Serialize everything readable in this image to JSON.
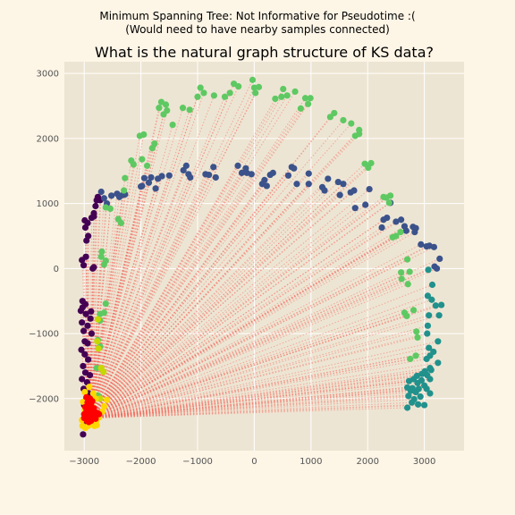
{
  "suptitle": {
    "line1": "Minimum Spanning Tree: Not Informative for Pseudotime :(",
    "line2": "(Would need to have nearby samples connected)"
  },
  "colors": {
    "figure_bg": "#fdf5e6",
    "axes_bg": "#ede5d3",
    "grid": "#ffffff",
    "edge": "#f4665c",
    "colormap": "viridis",
    "start_region": [
      "#ff0000",
      "#ffd700"
    ]
  },
  "chart_data": {
    "type": "scatter",
    "title": "What is the natural graph structure of KS data?",
    "xlabel": "",
    "ylabel": "",
    "xlim": [
      -3350,
      3700
    ],
    "ylim": [
      -2800,
      3180
    ],
    "xticks": [
      -3000,
      -2000,
      -1000,
      0,
      1000,
      2000,
      3000
    ],
    "yticks": [
      -2000,
      -1000,
      0,
      1000,
      2000,
      3000
    ],
    "grid": true,
    "hub": [
      -2900,
      -2300
    ],
    "edges_description": "dotted red lines connect the dense cluster near (-2900,-2300) to samples along the arc",
    "series": [
      {
        "color": "#440154",
        "points": [
          [
            -3020,
            -2550
          ],
          [
            -2980,
            -2400
          ],
          [
            -3000,
            -2100
          ],
          [
            -2960,
            -2000
          ],
          [
            -2920,
            -1920
          ],
          [
            -3010,
            -1850
          ],
          [
            -2950,
            -1750
          ],
          [
            -3040,
            -1700
          ],
          [
            -2900,
            -1640
          ],
          [
            -2980,
            -1600
          ],
          [
            -3020,
            -1500
          ],
          [
            -2930,
            -1400
          ],
          [
            -2990,
            -1320
          ],
          [
            -3050,
            -1250
          ],
          [
            -2940,
            -1150
          ],
          [
            -2990,
            -1120
          ],
          [
            -2870,
            -1000
          ],
          [
            -3010,
            -960
          ],
          [
            -2940,
            -880
          ],
          [
            -3040,
            -830
          ],
          [
            -2890,
            -770
          ],
          [
            -2970,
            -700
          ],
          [
            -3060,
            -650
          ],
          [
            -2880,
            -660
          ],
          [
            -3030,
            -600
          ],
          [
            -2980,
            -550
          ],
          [
            -3030,
            -500
          ],
          [
            -2850,
            0
          ],
          [
            -2830,
            20
          ],
          [
            -3010,
            50
          ],
          [
            -3040,
            130
          ],
          [
            -2970,
            180
          ],
          [
            -2960,
            430
          ],
          [
            -2930,
            500
          ],
          [
            -2980,
            630
          ],
          [
            -2940,
            700
          ],
          [
            -2990,
            740
          ],
          [
            -2870,
            780
          ],
          [
            -2830,
            800
          ],
          [
            -2830,
            850
          ],
          [
            -2800,
            960
          ],
          [
            -2780,
            1050
          ],
          [
            -2760,
            1100
          ],
          [
            -2720,
            1050
          ]
        ]
      },
      {
        "color": "#3b528b",
        "points": [
          [
            -2700,
            1180
          ],
          [
            -2650,
            1080
          ],
          [
            -2600,
            1000
          ],
          [
            -2520,
            1120
          ],
          [
            -2420,
            1150
          ],
          [
            -2380,
            1100
          ],
          [
            -2320,
            1130
          ],
          [
            -2280,
            1140
          ],
          [
            -2000,
            1260
          ],
          [
            -1980,
            1270
          ],
          [
            -1940,
            1390
          ],
          [
            -1860,
            1320
          ],
          [
            -1820,
            1400
          ],
          [
            -1740,
            1230
          ],
          [
            -1700,
            1380
          ],
          [
            -1630,
            1420
          ],
          [
            -1500,
            1430
          ],
          [
            -1250,
            1510
          ],
          [
            -1200,
            1580
          ],
          [
            -1160,
            1450
          ],
          [
            -1130,
            1400
          ],
          [
            -860,
            1450
          ],
          [
            -800,
            1440
          ],
          [
            -720,
            1560
          ],
          [
            -680,
            1400
          ],
          [
            -290,
            1580
          ],
          [
            -220,
            1470
          ],
          [
            -150,
            1540
          ],
          [
            -130,
            1470
          ],
          [
            -50,
            1450
          ],
          [
            140,
            1300
          ],
          [
            180,
            1360
          ],
          [
            220,
            1270
          ],
          [
            280,
            1440
          ],
          [
            330,
            1470
          ],
          [
            600,
            1430
          ],
          [
            660,
            1560
          ],
          [
            700,
            1540
          ],
          [
            750,
            1300
          ],
          [
            960,
            1460
          ],
          [
            960,
            1300
          ],
          [
            1200,
            1250
          ],
          [
            1240,
            1200
          ],
          [
            1300,
            1380
          ],
          [
            1480,
            1330
          ],
          [
            1510,
            1130
          ],
          [
            1570,
            1300
          ],
          [
            1700,
            1170
          ],
          [
            1760,
            1200
          ],
          [
            1780,
            930
          ],
          [
            1960,
            980
          ],
          [
            2030,
            1220
          ],
          [
            2250,
            630
          ],
          [
            2280,
            750
          ],
          [
            2340,
            780
          ],
          [
            2400,
            1010
          ],
          [
            2500,
            720
          ],
          [
            2590,
            750
          ],
          [
            2650,
            650
          ],
          [
            2680,
            580
          ],
          [
            2800,
            640
          ],
          [
            2850,
            620
          ],
          [
            2830,
            560
          ],
          [
            2940,
            370
          ],
          [
            3040,
            340
          ],
          [
            3090,
            350
          ],
          [
            3170,
            330
          ],
          [
            3270,
            150
          ],
          [
            3180,
            30
          ],
          [
            3220,
            0
          ]
        ]
      },
      {
        "color": "#21918c",
        "points": [
          [
            3070,
            -20
          ],
          [
            3140,
            -250
          ],
          [
            3060,
            -420
          ],
          [
            3130,
            -480
          ],
          [
            3200,
            -570
          ],
          [
            3300,
            -560
          ],
          [
            3080,
            -720
          ],
          [
            3260,
            -720
          ],
          [
            3060,
            -880
          ],
          [
            3050,
            -1000
          ],
          [
            3240,
            -1120
          ],
          [
            3080,
            -1220
          ],
          [
            3160,
            -1280
          ],
          [
            3100,
            -1340
          ],
          [
            3040,
            -1390
          ],
          [
            3240,
            -1450
          ],
          [
            3100,
            -1530
          ],
          [
            3120,
            -1560
          ],
          [
            3010,
            -1580
          ],
          [
            2960,
            -1620
          ],
          [
            3050,
            -1640
          ],
          [
            2870,
            -1650
          ],
          [
            3100,
            -1700
          ],
          [
            2810,
            -1700
          ],
          [
            2950,
            -1720
          ],
          [
            2730,
            -1730
          ],
          [
            2880,
            -1760
          ],
          [
            3000,
            -1800
          ],
          [
            2700,
            -1830
          ],
          [
            2790,
            -1840
          ],
          [
            2900,
            -1850
          ],
          [
            3040,
            -1850
          ],
          [
            2760,
            -1880
          ],
          [
            2850,
            -1900
          ],
          [
            3100,
            -1920
          ],
          [
            2720,
            -1960
          ],
          [
            2930,
            -1970
          ],
          [
            2820,
            -2010
          ],
          [
            2780,
            -2060
          ],
          [
            3000,
            -2100
          ],
          [
            2890,
            -2090
          ],
          [
            2700,
            -2140
          ]
        ]
      },
      {
        "color": "#5ec962",
        "points": [
          [
            -2880,
            -2010
          ],
          [
            -2760,
            -1950
          ],
          [
            -2780,
            -1530
          ],
          [
            -2720,
            -1200
          ],
          [
            -2760,
            -1100
          ],
          [
            -2720,
            -800
          ],
          [
            -2720,
            -700
          ],
          [
            -2650,
            -680
          ],
          [
            -2620,
            -540
          ],
          [
            -2690,
            260
          ],
          [
            -2700,
            180
          ],
          [
            -2620,
            120
          ],
          [
            -2650,
            60
          ],
          [
            -2620,
            940
          ],
          [
            -2540,
            920
          ],
          [
            -2400,
            760
          ],
          [
            -2350,
            700
          ],
          [
            -2300,
            1200
          ],
          [
            -2280,
            1390
          ],
          [
            -2170,
            1660
          ],
          [
            -2130,
            1600
          ],
          [
            -2020,
            2040
          ],
          [
            -1950,
            2060
          ],
          [
            -1980,
            1680
          ],
          [
            -1890,
            1580
          ],
          [
            -1800,
            1850
          ],
          [
            -1760,
            1920
          ],
          [
            -1680,
            2470
          ],
          [
            -1640,
            2560
          ],
          [
            -1600,
            2370
          ],
          [
            -1560,
            2520
          ],
          [
            -1540,
            2430
          ],
          [
            -1440,
            2210
          ],
          [
            -1260,
            2470
          ],
          [
            -1140,
            2440
          ],
          [
            -1000,
            2640
          ],
          [
            -950,
            2780
          ],
          [
            -890,
            2700
          ],
          [
            -710,
            2660
          ],
          [
            -520,
            2640
          ],
          [
            -430,
            2700
          ],
          [
            -360,
            2840
          ],
          [
            -280,
            2800
          ],
          [
            -30,
            2900
          ],
          [
            0,
            2780
          ],
          [
            20,
            2700
          ],
          [
            80,
            2790
          ],
          [
            370,
            2610
          ],
          [
            480,
            2640
          ],
          [
            510,
            2760
          ],
          [
            580,
            2660
          ],
          [
            720,
            2720
          ],
          [
            820,
            2460
          ],
          [
            900,
            2620
          ],
          [
            990,
            2620
          ],
          [
            950,
            2530
          ],
          [
            1340,
            2330
          ],
          [
            1410,
            2390
          ],
          [
            1570,
            2280
          ],
          [
            1710,
            2230
          ],
          [
            1780,
            2040
          ],
          [
            1850,
            2070
          ],
          [
            1850,
            2130
          ],
          [
            1950,
            1610
          ],
          [
            2010,
            1550
          ],
          [
            2060,
            1620
          ],
          [
            2280,
            1100
          ],
          [
            2330,
            1090
          ],
          [
            2380,
            1010
          ],
          [
            2400,
            1120
          ],
          [
            2440,
            480
          ],
          [
            2500,
            500
          ],
          [
            2580,
            560
          ],
          [
            2590,
            -60
          ],
          [
            2600,
            -160
          ],
          [
            2650,
            -680
          ],
          [
            2690,
            -730
          ],
          [
            2710,
            -240
          ],
          [
            2740,
            -50
          ],
          [
            2810,
            -640
          ],
          [
            2860,
            -970
          ],
          [
            2880,
            -1060
          ],
          [
            2750,
            -1390
          ],
          [
            2850,
            -1340
          ],
          [
            2700,
            140
          ]
        ]
      },
      {
        "color": "#c5d800",
        "points": [
          [
            -2760,
            -780
          ],
          [
            -2770,
            -1120
          ],
          [
            -2750,
            -1230
          ],
          [
            -2700,
            -1530
          ],
          [
            -2660,
            -1590
          ],
          [
            -2720,
            -2000
          ]
        ]
      },
      {
        "color": "#ffd700",
        "points": [
          [
            -3030,
            -2420
          ],
          [
            -3040,
            -2330
          ],
          [
            -2980,
            -2450
          ],
          [
            -2930,
            -2420
          ],
          [
            -2880,
            -2380
          ],
          [
            -2820,
            -2420
          ],
          [
            -2790,
            -2350
          ],
          [
            -2740,
            -2290
          ],
          [
            -2680,
            -2200
          ],
          [
            -2650,
            -2120
          ],
          [
            -2600,
            -2020
          ],
          [
            -2960,
            -2230
          ],
          [
            -2990,
            -2170
          ],
          [
            -2870,
            -2110
          ],
          [
            -2800,
            -2000
          ],
          [
            -2840,
            -1920
          ],
          [
            -2910,
            -1820
          ],
          [
            -2990,
            -1900
          ],
          [
            -3020,
            -2050
          ],
          [
            -2780,
            -2410
          ]
        ]
      },
      {
        "color": "#ff0000",
        "points": [
          [
            -2980,
            -2300
          ],
          [
            -2940,
            -2280
          ],
          [
            -2900,
            -2250
          ],
          [
            -2860,
            -2300
          ],
          [
            -2950,
            -2340
          ],
          [
            -2880,
            -2340
          ],
          [
            -2820,
            -2260
          ],
          [
            -2850,
            -2220
          ],
          [
            -2900,
            -2190
          ],
          [
            -2960,
            -2180
          ],
          [
            -3000,
            -2240
          ],
          [
            -2920,
            -2140
          ],
          [
            -2880,
            -2080
          ],
          [
            -2940,
            -2060
          ],
          [
            -2860,
            -2040
          ],
          [
            -2830,
            -2150
          ],
          [
            -2770,
            -2220
          ],
          [
            -2740,
            -2240
          ],
          [
            -2960,
            -1980
          ],
          [
            -2900,
            -2000
          ],
          [
            -2980,
            -2130
          ],
          [
            -2800,
            -2310
          ],
          [
            -2920,
            -2360
          ],
          [
            -3000,
            -2300
          ]
        ]
      }
    ]
  }
}
